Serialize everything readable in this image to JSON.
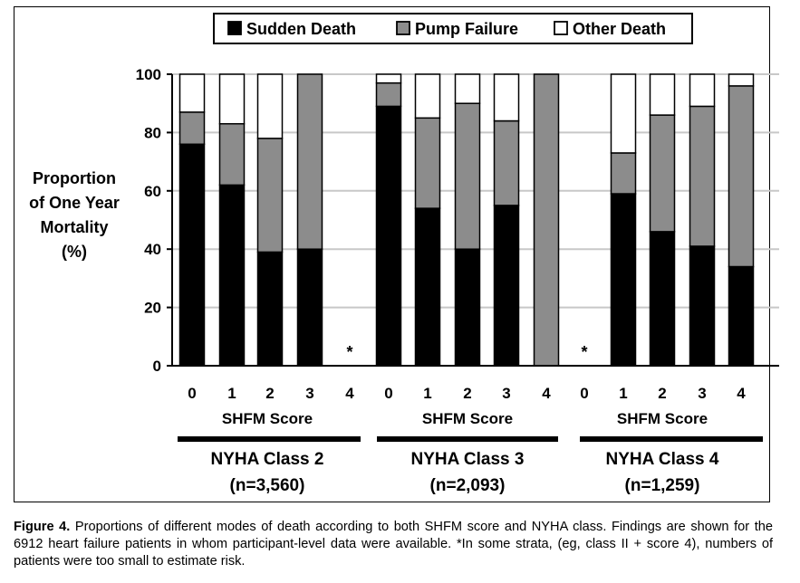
{
  "chart_data": {
    "type": "bar",
    "stacked": true,
    "ylabel": [
      "Proportion",
      "of One Year",
      "Mortality",
      "(%)"
    ],
    "ylim": [
      0,
      100
    ],
    "yticks": [
      0,
      20,
      40,
      60,
      80,
      100
    ],
    "grid": true,
    "legend_position": "top",
    "series": [
      {
        "name": "Sudden Death",
        "color": "#000000"
      },
      {
        "name": "Pump Failure",
        "color": "#8c8c8c"
      },
      {
        "name": "Other Death",
        "color": "#ffffff"
      }
    ],
    "groups": [
      {
        "name": "NYHA Class 2",
        "n": "(n=3,560)",
        "xlabel": "SHFM Score",
        "bars": [
          {
            "score": "0",
            "sudden": 76,
            "pump": 11,
            "other": 13,
            "asterisk": false
          },
          {
            "score": "1",
            "sudden": 62,
            "pump": 21,
            "other": 17,
            "asterisk": false
          },
          {
            "score": "2",
            "sudden": 39,
            "pump": 39,
            "other": 22,
            "asterisk": false
          },
          {
            "score": "3",
            "sudden": 40,
            "pump": 60,
            "other": 0,
            "asterisk": false
          },
          {
            "score": "4",
            "sudden": 0,
            "pump": 0,
            "other": 0,
            "asterisk": true
          }
        ]
      },
      {
        "name": "NYHA Class 3",
        "n": "(n=2,093)",
        "xlabel": "SHFM Score",
        "bars": [
          {
            "score": "0",
            "sudden": 89,
            "pump": 8,
            "other": 3,
            "asterisk": false
          },
          {
            "score": "1",
            "sudden": 54,
            "pump": 31,
            "other": 15,
            "asterisk": false
          },
          {
            "score": "2",
            "sudden": 40,
            "pump": 50,
            "other": 10,
            "asterisk": false
          },
          {
            "score": "3",
            "sudden": 55,
            "pump": 29,
            "other": 16,
            "asterisk": false
          },
          {
            "score": "4",
            "sudden": 0,
            "pump": 100,
            "other": 0,
            "asterisk": false
          }
        ]
      },
      {
        "name": "NYHA Class 4",
        "n": "(n=1,259)",
        "xlabel": "SHFM Score",
        "bars": [
          {
            "score": "0",
            "sudden": 0,
            "pump": 0,
            "other": 0,
            "asterisk": true
          },
          {
            "score": "1",
            "sudden": 59,
            "pump": 14,
            "other": 27,
            "asterisk": false
          },
          {
            "score": "2",
            "sudden": 46,
            "pump": 40,
            "other": 14,
            "asterisk": false
          },
          {
            "score": "3",
            "sudden": 41,
            "pump": 48,
            "other": 11,
            "asterisk": false
          },
          {
            "score": "4",
            "sudden": 34,
            "pump": 62,
            "other": 4,
            "asterisk": false
          }
        ]
      }
    ],
    "asterisk_symbol": "*"
  },
  "caption": {
    "label": "Figure 4.",
    "text": " Proportions of different modes of death according to both SHFM score and NYHA class. Findings are shown for the 6912 heart failure patients in whom participant-level data were available. *In some strata, (eg, class II + score 4), numbers of patients were too small to estimate risk."
  }
}
